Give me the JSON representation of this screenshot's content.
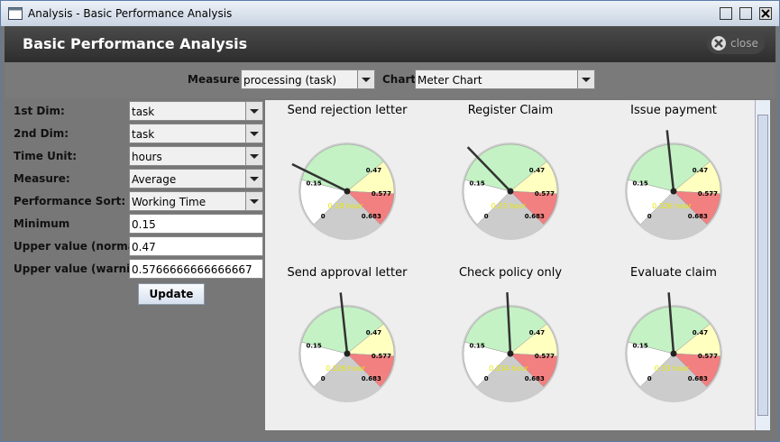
{
  "window": {
    "title": "Analysis - Basic Performance Analysis"
  },
  "header": {
    "title": "Basic Performance Analysis",
    "close": "close"
  },
  "toolbar": {
    "measure_label": "Measure:",
    "measure": "processing (task)",
    "chart_label": "Chart",
    "chart": "Meter Chart"
  },
  "form": {
    "fields": [
      {
        "label": "1st Dim:",
        "value": "task",
        "kind": "combo"
      },
      {
        "label": "2nd Dim:",
        "value": "task",
        "kind": "combo"
      },
      {
        "label": "Time Unit:",
        "value": "hours",
        "kind": "combo"
      },
      {
        "label": "Measure:",
        "value": "Average",
        "kind": "combo"
      },
      {
        "label": "Performance Sort:",
        "value": "Working Time",
        "kind": "combo"
      },
      {
        "label": "Minimum",
        "value": "0.15",
        "kind": "text"
      },
      {
        "label": "Upper value (normal)",
        "value": "0.47",
        "kind": "text"
      },
      {
        "label": "Upper value (warning)",
        "value": "0.5766666666666667",
        "kind": "text"
      }
    ],
    "button": "Update"
  },
  "chart_data": {
    "type": "meter",
    "range": [
      0,
      0.683
    ],
    "ticks": [
      0,
      0.15,
      0.47,
      0.577,
      0.683
    ],
    "band_colors": [
      "#ffffff",
      "#c4f2c4",
      "#ffffc0",
      "#f28080"
    ],
    "gauges": [
      {
        "title": "Send rejection letter",
        "value": 0.18,
        "value_label": "0.18 hour"
      },
      {
        "title": "Register Claim",
        "value": 0.23,
        "value_label": "0.23 hour"
      },
      {
        "title": "Issue payment",
        "value": 0.326,
        "value_label": "0.326 hour"
      },
      {
        "title": "Send approval letter",
        "value": 0.326,
        "value_label": "0.326 hour"
      },
      {
        "title": "Check policy only",
        "value": 0.334,
        "value_label": "0.334 hour"
      },
      {
        "title": "Evaluate claim",
        "value": 0.33,
        "value_label": "0.33 hour"
      }
    ]
  }
}
